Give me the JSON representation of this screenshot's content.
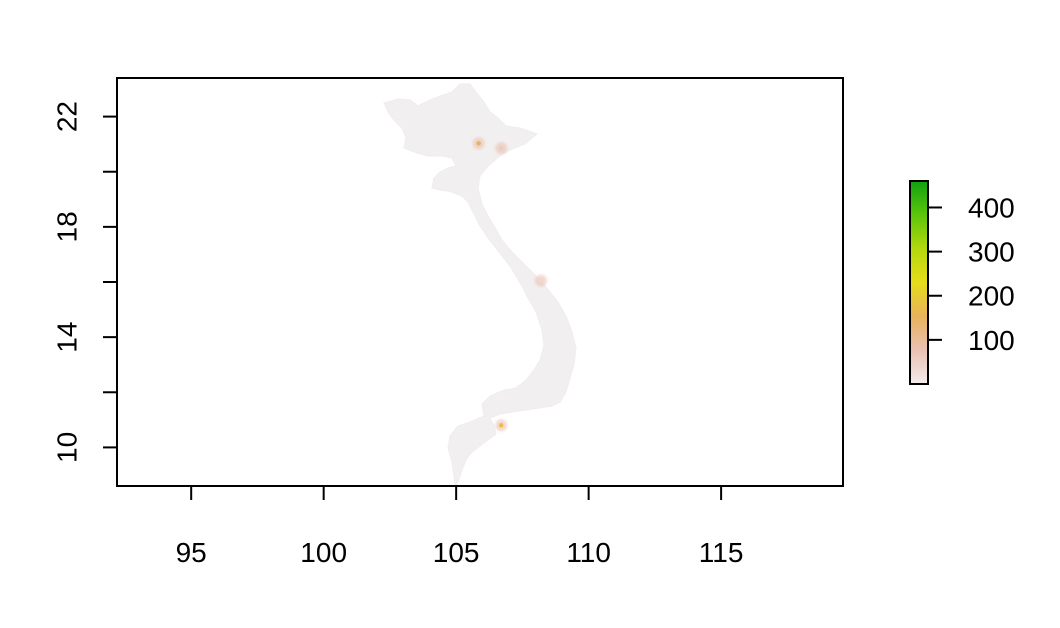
{
  "map": {
    "type": "raster",
    "x_axis": {
      "lim": [
        92.2,
        119.6
      ],
      "ticks": [
        95,
        100,
        105,
        110,
        115
      ],
      "tick_labels": [
        "95",
        "100",
        "105",
        "110",
        "115"
      ]
    },
    "y_axis": {
      "lim": [
        8.6,
        23.4
      ],
      "ticks": [
        10,
        12,
        14,
        16,
        18,
        20,
        22
      ],
      "labeled_ticks": [
        10,
        14,
        18,
        22
      ],
      "tick_labels": [
        "10",
        "14",
        "18",
        "22"
      ]
    },
    "background_color": "#ffffff",
    "raster_base_color": "#f1efef",
    "hotspots": [
      {
        "lon": 106.7,
        "lat": 10.8,
        "value": 180
      },
      {
        "lon": 105.85,
        "lat": 21.03,
        "value": 150
      },
      {
        "lon": 106.7,
        "lat": 20.85,
        "value": 60
      },
      {
        "lon": 108.2,
        "lat": 16.05,
        "value": 40
      }
    ]
  },
  "legend": {
    "min": 0,
    "max": 460,
    "ticks": [
      100,
      200,
      300,
      400
    ],
    "tick_labels": [
      "100",
      "200",
      "300",
      "400"
    ],
    "color_stops": [
      "#f3ecec",
      "#eac1b2",
      "#e8b25c",
      "#e6dd1a",
      "#b3d80d",
      "#5cc60a",
      "#11a011"
    ]
  }
}
